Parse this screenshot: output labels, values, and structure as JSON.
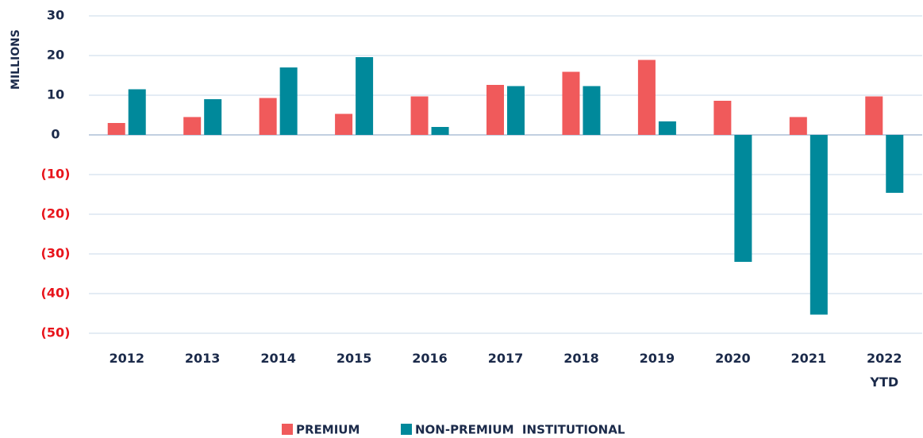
{
  "chart_data": {
    "type": "bar",
    "y_label": "MILLIONS",
    "categories": [
      "2012",
      "2013",
      "2014",
      "2015",
      "2016",
      "2017",
      "2018",
      "2019",
      "2020",
      "2021",
      "2022\nYTD"
    ],
    "series": [
      {
        "name": "PREMIUM",
        "color": "#f05a5b",
        "values": [
          3,
          4.5,
          9.3,
          5.3,
          9.7,
          12.6,
          15.9,
          18.9,
          8.6,
          4.5,
          9.7
        ]
      },
      {
        "name": "NON-PREMIUM  INSTITUTIONAL",
        "color": "#00899b",
        "values": [
          11.5,
          9,
          17,
          19.6,
          2,
          12.3,
          12.3,
          3.4,
          -32,
          -45.3,
          -14.6
        ]
      }
    ],
    "ylim": [
      -50,
      30
    ],
    "yticks": [
      {
        "value": -50,
        "label": "(50)"
      },
      {
        "value": -40,
        "label": "(40)"
      },
      {
        "value": -30,
        "label": "(30)"
      },
      {
        "value": -20,
        "label": "(20)"
      },
      {
        "value": -10,
        "label": "(10)"
      },
      0,
      10,
      20,
      30
    ],
    "negative_tick_color": "#e8141b",
    "grid": true,
    "legend": "bottom"
  }
}
